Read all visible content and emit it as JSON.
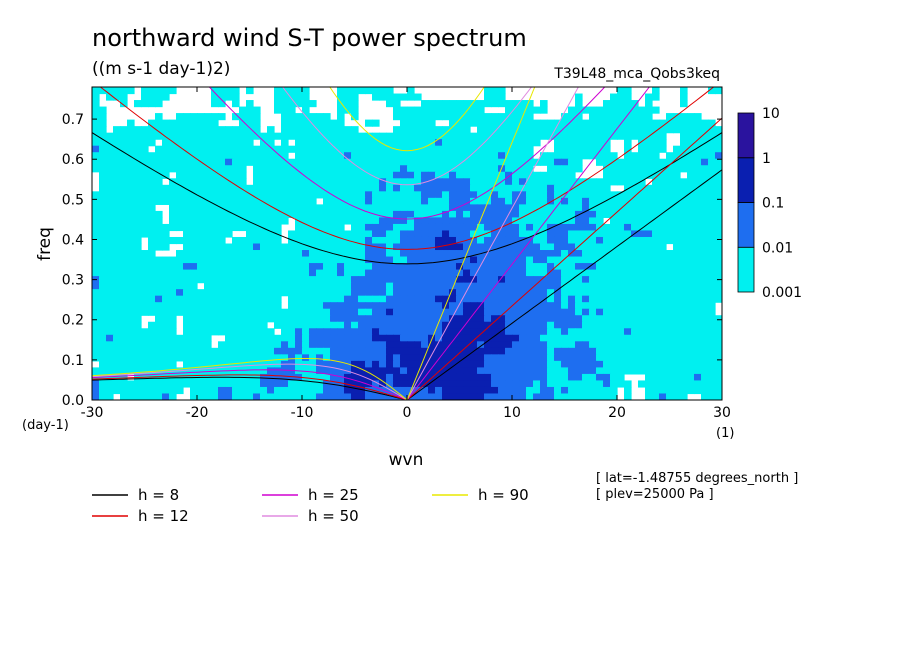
{
  "header": {
    "title": "northward wind S-T power spectrum",
    "units": "((m s-1 day-1)2)",
    "run": "T39L48_mca_Qobs3keq"
  },
  "info": {
    "lat": "[ lat=-1.48755 degrees_north ]",
    "plev": "[ plev=25000 Pa ]"
  },
  "chart_data": {
    "type": "heatmap",
    "title": "northward wind S-T power spectrum",
    "xlabel": "wvn",
    "ylabel": "freq",
    "x_unit": "(1)",
    "y_unit": "(day-1)",
    "xlim": [
      -30,
      30
    ],
    "ylim": [
      0,
      0.78
    ],
    "xticks": [
      -30,
      -20,
      -10,
      0,
      10,
      20,
      30
    ],
    "yticks": [
      0,
      0.1,
      0.2,
      0.3,
      0.4,
      0.5,
      0.6,
      0.7
    ],
    "ytick_labels": [
      "0.0",
      "0.1",
      "0.2",
      "0.3",
      "0.4",
      "0.5",
      "0.6",
      "0.7"
    ],
    "colorbar": {
      "levels": [
        "0.001",
        "0.01",
        "0.1",
        "1",
        "10"
      ],
      "colors": [
        "#00f0f0",
        "#1e6ef0",
        "#0a1fb0",
        "#2a139e"
      ]
    },
    "dispersion_curves": [
      {
        "name": "h =  8",
        "h": 8,
        "color": "#000000"
      },
      {
        "name": "h = 12",
        "h": 12,
        "color": "#e00000"
      },
      {
        "name": "h = 25",
        "h": 25,
        "color": "#d000d0"
      },
      {
        "name": "h = 50",
        "h": 50,
        "color": "#e08ce0"
      },
      {
        "name": "h = 90",
        "h": 90,
        "color": "#e8e800"
      }
    ]
  }
}
